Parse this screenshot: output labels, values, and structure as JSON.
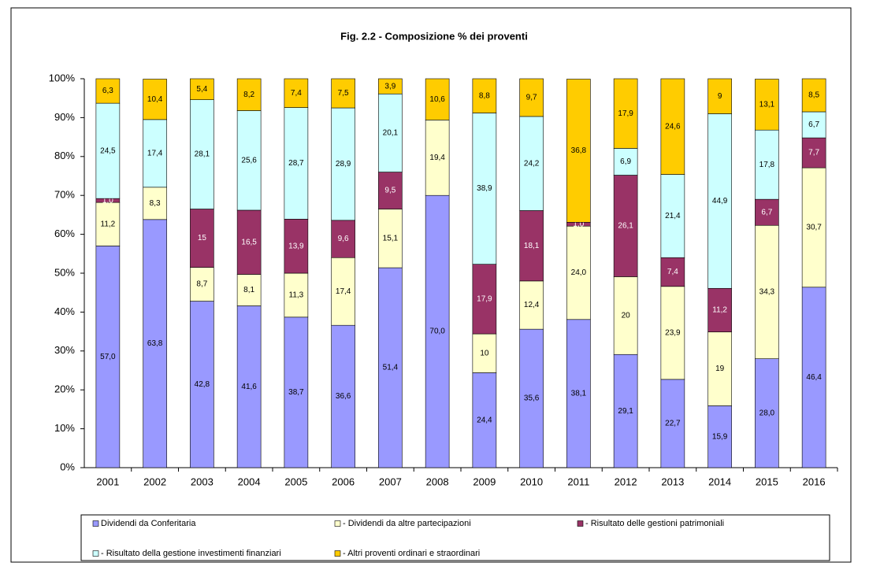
{
  "chart_data": {
    "type": "stacked_bar",
    "title": "Fig. 2.2 - Composizione % dei proventi",
    "categories": [
      "2001",
      "2002",
      "2003",
      "2004",
      "2005",
      "2006",
      "2007",
      "2008",
      "2009",
      "2010",
      "2011",
      "2012",
      "2013",
      "2014",
      "2015",
      "2016"
    ],
    "series": [
      {
        "name": "Dividendi da Conferitaria",
        "color": "#9999ff",
        "values": [
          57.0,
          63.8,
          42.8,
          41.6,
          38.7,
          36.6,
          51.4,
          70.0,
          24.4,
          35.6,
          38.1,
          29.1,
          22.7,
          15.9,
          28.0,
          46.4
        ],
        "value_labels": [
          "57,0",
          "63,8",
          "42,8",
          "41,6",
          "38,7",
          "36,6",
          "51,4",
          "70,0",
          "24,4",
          "35,6",
          "38,1",
          "29,1",
          "22,7",
          "15,9",
          "28,0",
          "46,4"
        ]
      },
      {
        "name": "- Dividendi da altre partecipazioni",
        "color": "#ffffcc",
        "values": [
          11.2,
          8.3,
          8.7,
          8.1,
          11.3,
          17.4,
          15.1,
          19.4,
          10,
          12.4,
          24.0,
          20,
          23.9,
          19,
          34.3,
          30.7
        ],
        "value_labels": [
          "11,2",
          "8,3",
          "8,7",
          "8,1",
          "11,3",
          "17,4",
          "15,1",
          "19,4",
          "10",
          "12,4",
          "24,0",
          "20",
          "23,9",
          "19",
          "34,3",
          "30,7"
        ]
      },
      {
        "name": "- Risultato delle gestioni patrimoniali",
        "color": "#993366",
        "values": [
          1.0,
          null,
          15,
          16.5,
          13.9,
          9.6,
          9.5,
          null,
          17.9,
          18.1,
          1.0,
          26.1,
          7.4,
          11.2,
          6.7,
          7.7
        ],
        "value_labels": [
          "1,0",
          null,
          "15",
          "16,5",
          "13,9",
          "9,6",
          "9,5",
          null,
          "17,9",
          "18,1",
          "1,0",
          "26,1",
          "7,4",
          "11,2",
          "6,7",
          "7,7"
        ]
      },
      {
        "name": "- Risultato della gestione investimenti finanziari",
        "color": "#ccffff",
        "values": [
          24.5,
          17.4,
          28.1,
          25.6,
          28.7,
          28.9,
          20.1,
          null,
          38.9,
          24.2,
          null,
          6.9,
          21.4,
          44.9,
          17.8,
          6.7
        ],
        "value_labels": [
          "24,5",
          "17,4",
          "28,1",
          "25,6",
          "28,7",
          "28,9",
          "20,1",
          null,
          "38,9",
          "24,2",
          null,
          "6,9",
          "21,4",
          "44,9",
          "17,8",
          "6,7"
        ]
      },
      {
        "name": "- Altri proventi ordinari e straordinari",
        "color": "#ffcc00",
        "values": [
          6.3,
          10.4,
          5.4,
          8.2,
          7.4,
          7.5,
          3.9,
          10.6,
          8.8,
          9.7,
          36.8,
          17.9,
          24.6,
          9,
          13.1,
          8.5
        ],
        "value_labels": [
          "6,3",
          "10,4",
          "5,4",
          "8,2",
          "7,4",
          "7,5",
          "3,9",
          "10,6",
          "8,8",
          "9,7",
          "36,8",
          "17,9",
          "24,6",
          "9",
          "13,1",
          "8,5"
        ]
      }
    ],
    "ylim": [
      0,
      100
    ],
    "yticks": [
      {
        "value": 0,
        "label": "0%"
      },
      {
        "value": 10,
        "label": "10%"
      },
      {
        "value": 20,
        "label": "20%"
      },
      {
        "value": 30,
        "label": "30%"
      },
      {
        "value": 40,
        "label": "40%"
      },
      {
        "value": 50,
        "label": "50%"
      },
      {
        "value": 60,
        "label": "60%"
      },
      {
        "value": 70,
        "label": "70%"
      },
      {
        "value": 80,
        "label": "80%"
      },
      {
        "value": 90,
        "label": "90%"
      },
      {
        "value": 100,
        "label": "100%"
      }
    ],
    "grid": false
  }
}
